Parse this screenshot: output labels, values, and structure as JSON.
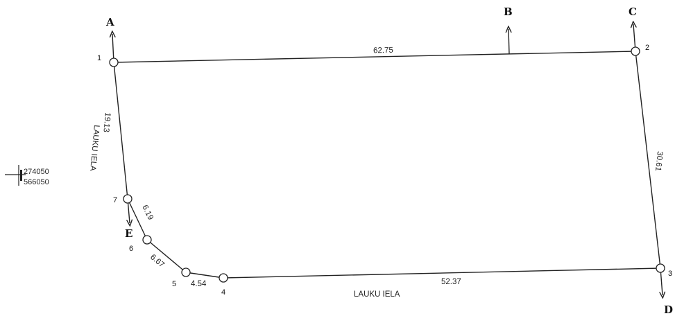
{
  "directions": {
    "a": "A",
    "b": "B",
    "c": "C",
    "d": "D",
    "e": "E"
  },
  "points": {
    "p1": "1",
    "p2": "2",
    "p3": "3",
    "p4": "4",
    "p5": "5",
    "p6": "6",
    "p7": "7"
  },
  "lengths": {
    "top": "62.75",
    "left": "19.13",
    "right": "30.61",
    "bottom": "52.37",
    "seg_7_6": "6.19",
    "seg_6_5": "6.67",
    "seg_5_4": "4.54"
  },
  "streets": {
    "left": "LAUKU IELA",
    "bottom": "LAUKU IELA"
  },
  "coordinates": {
    "x": "274050",
    "y": "566050"
  }
}
